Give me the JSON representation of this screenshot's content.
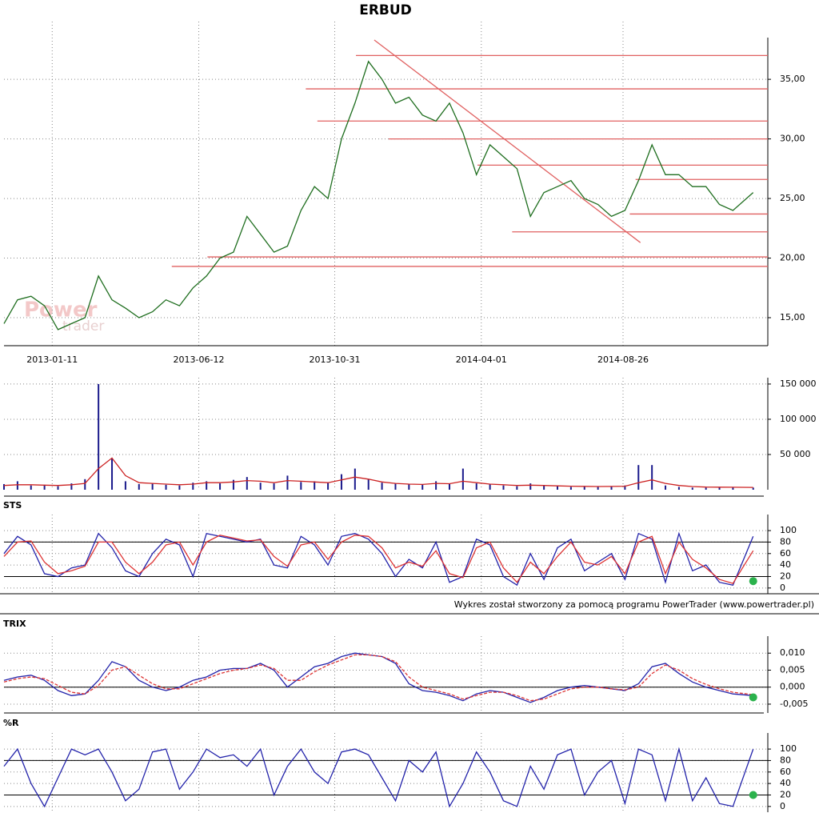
{
  "chart_data": [
    {
      "type": "line",
      "title": "ERBUD",
      "watermark": [
        "Power",
        "trader"
      ],
      "x": [
        "2012-11-22",
        "2012-12-06",
        "2012-12-20",
        "2013-01-03",
        "2013-01-17",
        "2013-01-31",
        "2013-02-14",
        "2013-02-28",
        "2013-03-14",
        "2013-03-28",
        "2013-04-11",
        "2013-04-25",
        "2013-05-09",
        "2013-05-23",
        "2013-06-06",
        "2013-06-20",
        "2013-07-04",
        "2013-07-18",
        "2013-08-01",
        "2013-08-15",
        "2013-08-29",
        "2013-09-12",
        "2013-09-26",
        "2013-10-10",
        "2013-10-24",
        "2013-11-07",
        "2013-11-21",
        "2013-12-05",
        "2013-12-19",
        "2014-01-02",
        "2014-01-16",
        "2014-01-30",
        "2014-02-13",
        "2014-02-27",
        "2014-03-13",
        "2014-03-27",
        "2014-04-10",
        "2014-04-24",
        "2014-05-08",
        "2014-05-22",
        "2014-06-05",
        "2014-06-19",
        "2014-07-03",
        "2014-07-17",
        "2014-07-31",
        "2014-08-14",
        "2014-08-28",
        "2014-09-11",
        "2014-09-25",
        "2014-10-09",
        "2014-10-23",
        "2014-11-06",
        "2014-11-20",
        "2014-12-04",
        "2014-12-18",
        "2015-01-08"
      ],
      "series": [
        {
          "color": "#1f6e1f",
          "values": [
            14.5,
            16.5,
            16.8,
            16.0,
            14.0,
            14.5,
            15.0,
            18.5,
            16.5,
            15.8,
            15.0,
            15.5,
            16.5,
            16.0,
            17.5,
            18.5,
            20.0,
            20.5,
            23.5,
            22.0,
            20.5,
            21.0,
            24.0,
            26.0,
            25.0,
            30.0,
            33.0,
            36.5,
            35.0,
            33.0,
            33.5,
            32.0,
            31.5,
            33.0,
            30.5,
            27.0,
            29.5,
            28.5,
            27.5,
            23.5,
            25.5,
            26.0,
            26.5,
            25.0,
            24.5,
            23.5,
            24.0,
            26.5,
            29.5,
            27.0,
            27.0,
            26.0,
            26.0,
            24.5,
            24.0,
            25.5
          ]
        }
      ],
      "levels": [
        {
          "value": 37.0,
          "start": "2013-11-22"
        },
        {
          "value": 34.2,
          "start": "2013-10-01"
        },
        {
          "value": 31.5,
          "start": "2013-10-13"
        },
        {
          "value": 30.0,
          "start": "2013-12-26"
        },
        {
          "value": 27.8,
          "start": "2014-03-28"
        },
        {
          "value": 26.6,
          "start": "2014-09-08"
        },
        {
          "value": 23.7,
          "start": "2014-09-02"
        },
        {
          "value": 22.2,
          "start": "2014-05-03"
        },
        {
          "value": 20.1,
          "start": "2013-06-21"
        },
        {
          "value": 19.3,
          "start": "2013-05-15"
        }
      ],
      "level_color": "#e06060",
      "trendline": {
        "x": [
          "2013-12-11",
          "2014-09-13"
        ],
        "y": [
          38.3,
          21.3
        ]
      },
      "xlim": [
        "2012-11-22",
        "2015-01-19"
      ],
      "xticks": [
        "2013-01-11",
        "2013-06-12",
        "2013-10-31",
        "2014-04-01",
        "2014-08-26"
      ],
      "ylim": [
        12.65,
        38.5
      ],
      "yticks": [
        {
          "value": 15,
          "label": "15,00"
        },
        {
          "value": 20,
          "label": "20,00"
        },
        {
          "value": 25,
          "label": "25,00"
        },
        {
          "value": 30,
          "label": "30,00"
        },
        {
          "value": 35,
          "label": "35,00"
        }
      ],
      "grid": true
    },
    {
      "type": "bar",
      "color": "#1a1a8c",
      "x": [
        "2012-11-22",
        "2012-12-06",
        "2012-12-20",
        "2013-01-03",
        "2013-01-17",
        "2013-01-31",
        "2013-02-14",
        "2013-02-28",
        "2013-03-14",
        "2013-03-28",
        "2013-04-11",
        "2013-04-25",
        "2013-05-09",
        "2013-05-23",
        "2013-06-06",
        "2013-06-20",
        "2013-07-04",
        "2013-07-18",
        "2013-08-01",
        "2013-08-15",
        "2013-08-29",
        "2013-09-12",
        "2013-09-26",
        "2013-10-10",
        "2013-10-24",
        "2013-11-07",
        "2013-11-21",
        "2013-12-05",
        "2013-12-19",
        "2014-01-02",
        "2014-01-16",
        "2014-01-30",
        "2014-02-13",
        "2014-02-27",
        "2014-03-13",
        "2014-03-27",
        "2014-04-10",
        "2014-04-24",
        "2014-05-08",
        "2014-05-22",
        "2014-06-05",
        "2014-06-19",
        "2014-07-03",
        "2014-07-17",
        "2014-07-31",
        "2014-08-14",
        "2014-08-28",
        "2014-09-11",
        "2014-09-25",
        "2014-10-09",
        "2014-10-23",
        "2014-11-06",
        "2014-11-20",
        "2014-12-04",
        "2014-12-18",
        "2015-01-08"
      ],
      "values": [
        8000,
        12000,
        6000,
        7000,
        5000,
        9000,
        15000,
        150000,
        45000,
        12000,
        8000,
        9000,
        7000,
        6000,
        10000,
        12000,
        9000,
        14000,
        18000,
        10000,
        9000,
        20000,
        11000,
        12000,
        10000,
        22000,
        30000,
        15000,
        10000,
        9000,
        8000,
        7000,
        12000,
        9000,
        30000,
        9000,
        8000,
        6000,
        5000,
        9000,
        6000,
        5000,
        4000,
        5000,
        4000,
        5000,
        6000,
        35000,
        35000,
        6000,
        4000,
        3000,
        3000,
        4000,
        3000,
        3000
      ],
      "series": [
        {
          "color": "#cc2222",
          "values": [
            6000,
            7000,
            7000,
            6500,
            6000,
            7000,
            9000,
            30000,
            45000,
            20000,
            10000,
            9000,
            8000,
            7000,
            8000,
            10000,
            10000,
            11000,
            13000,
            12000,
            10000,
            13000,
            12000,
            11000,
            10000,
            14000,
            18000,
            15000,
            11000,
            9000,
            8000,
            7500,
            9000,
            8500,
            12000,
            10000,
            8000,
            7000,
            6000,
            6500,
            6000,
            5500,
            5000,
            4800,
            4500,
            4600,
            5000,
            10000,
            14000,
            9000,
            6000,
            4500,
            3800,
            3600,
            3500,
            3300
          ]
        }
      ],
      "ylim": [
        0,
        159000
      ],
      "yticks": [
        {
          "value": 50000,
          "label": "50 000"
        },
        {
          "value": 100000,
          "label": "100 000"
        },
        {
          "value": 150000,
          "label": "150 000"
        }
      ],
      "grid": true
    },
    {
      "type": "line",
      "title": "STS",
      "x": [
        "2012-11-22",
        "2012-12-06",
        "2012-12-20",
        "2013-01-03",
        "2013-01-17",
        "2013-01-31",
        "2013-02-14",
        "2013-02-28",
        "2013-03-14",
        "2013-03-28",
        "2013-04-11",
        "2013-04-25",
        "2013-05-09",
        "2013-05-23",
        "2013-06-06",
        "2013-06-20",
        "2013-07-04",
        "2013-07-18",
        "2013-08-01",
        "2013-08-15",
        "2013-08-29",
        "2013-09-12",
        "2013-09-26",
        "2013-10-10",
        "2013-10-24",
        "2013-11-07",
        "2013-11-21",
        "2013-12-05",
        "2013-12-19",
        "2014-01-02",
        "2014-01-16",
        "2014-01-30",
        "2014-02-13",
        "2014-02-27",
        "2014-03-13",
        "2014-03-27",
        "2014-04-10",
        "2014-04-24",
        "2014-05-08",
        "2014-05-22",
        "2014-06-05",
        "2014-06-19",
        "2014-07-03",
        "2014-07-17",
        "2014-07-31",
        "2014-08-14",
        "2014-08-28",
        "2014-09-11",
        "2014-09-25",
        "2014-10-09",
        "2014-10-23",
        "2014-11-06",
        "2014-11-20",
        "2014-12-04",
        "2014-12-18",
        "2015-01-08"
      ],
      "series": [
        {
          "color": "#2222aa",
          "values": [
            60,
            90,
            75,
            25,
            20,
            35,
            40,
            95,
            70,
            30,
            20,
            60,
            85,
            75,
            20,
            95,
            90,
            85,
            80,
            85,
            40,
            35,
            90,
            75,
            40,
            90,
            95,
            85,
            60,
            20,
            50,
            35,
            80,
            10,
            20,
            85,
            75,
            20,
            5,
            60,
            15,
            70,
            85,
            30,
            45,
            60,
            15,
            95,
            85,
            10,
            95,
            30,
            40,
            10,
            5,
            90
          ]
        },
        {
          "color": "#dd3333",
          "values": [
            55,
            80,
            82,
            45,
            25,
            30,
            38,
            80,
            80,
            45,
            25,
            45,
            75,
            80,
            40,
            80,
            92,
            87,
            82,
            84,
            55,
            38,
            75,
            80,
            50,
            80,
            92,
            90,
            70,
            35,
            45,
            38,
            65,
            25,
            18,
            70,
            80,
            35,
            10,
            45,
            25,
            55,
            80,
            45,
            40,
            55,
            25,
            80,
            90,
            25,
            80,
            50,
            35,
            15,
            8,
            65
          ]
        }
      ],
      "signal": {
        "x": "2015-01-08",
        "y": 12
      },
      "signal_color": "#2bb24c",
      "hlines": [
        20,
        80
      ],
      "ylim": [
        -10,
        128
      ],
      "yticks": [
        0,
        20,
        40,
        60,
        80,
        100
      ],
      "grid": true,
      "footer": "Wykres został stworzony za pomocą programu PowerTrader (www.powertrader.pl)"
    },
    {
      "type": "line",
      "title": "TRIX",
      "x": [
        "2012-11-22",
        "2012-12-06",
        "2012-12-20",
        "2013-01-03",
        "2013-01-17",
        "2013-01-31",
        "2013-02-14",
        "2013-02-28",
        "2013-03-14",
        "2013-03-28",
        "2013-04-11",
        "2013-04-25",
        "2013-05-09",
        "2013-05-23",
        "2013-06-06",
        "2013-06-20",
        "2013-07-04",
        "2013-07-18",
        "2013-08-01",
        "2013-08-15",
        "2013-08-29",
        "2013-09-12",
        "2013-09-26",
        "2013-10-10",
        "2013-10-24",
        "2013-11-07",
        "2013-11-21",
        "2013-12-05",
        "2013-12-19",
        "2014-01-02",
        "2014-01-16",
        "2014-01-30",
        "2014-02-13",
        "2014-02-27",
        "2014-03-13",
        "2014-03-27",
        "2014-04-10",
        "2014-04-24",
        "2014-05-08",
        "2014-05-22",
        "2014-06-05",
        "2014-06-19",
        "2014-07-03",
        "2014-07-17",
        "2014-07-31",
        "2014-08-14",
        "2014-08-28",
        "2014-09-11",
        "2014-09-25",
        "2014-10-09",
        "2014-10-23",
        "2014-11-06",
        "2014-11-20",
        "2014-12-04",
        "2014-12-18",
        "2015-01-08"
      ],
      "series": [
        {
          "color": "#2222aa",
          "values": [
            0.002,
            0.003,
            0.0035,
            0.002,
            -0.001,
            -0.0025,
            -0.002,
            0.002,
            0.0075,
            0.006,
            0.002,
            0.0,
            -0.001,
            0.0,
            0.002,
            0.003,
            0.005,
            0.0055,
            0.0055,
            0.007,
            0.005,
            0.0,
            0.003,
            0.006,
            0.007,
            0.009,
            0.01,
            0.0095,
            0.009,
            0.007,
            0.001,
            -0.001,
            -0.0015,
            -0.0025,
            -0.004,
            -0.002,
            -0.001,
            -0.0015,
            -0.003,
            -0.0045,
            -0.003,
            -0.001,
            0.0,
            0.0005,
            0.0,
            -0.0005,
            -0.001,
            0.001,
            0.006,
            0.007,
            0.004,
            0.0015,
            0.0,
            -0.001,
            -0.002,
            -0.0025
          ]
        },
        {
          "color": "#dd3333",
          "dashed": true,
          "values": [
            0.0015,
            0.0025,
            0.003,
            0.0025,
            0.0005,
            -0.0015,
            -0.002,
            0.0005,
            0.005,
            0.006,
            0.0035,
            0.001,
            -0.0005,
            -0.0005,
            0.001,
            0.0025,
            0.004,
            0.005,
            0.0055,
            0.0065,
            0.0055,
            0.002,
            0.002,
            0.0045,
            0.0065,
            0.008,
            0.0095,
            0.0095,
            0.009,
            0.0075,
            0.003,
            0.0,
            -0.001,
            -0.002,
            -0.0035,
            -0.0025,
            -0.0015,
            -0.0015,
            -0.0025,
            -0.004,
            -0.0035,
            -0.002,
            -0.0005,
            0.0,
            0.0,
            -0.0005,
            -0.0008,
            0.0,
            0.004,
            0.0065,
            0.005,
            0.0025,
            0.0008,
            -0.0005,
            -0.0015,
            -0.0022
          ]
        }
      ],
      "signal": {
        "x": "2015-01-08",
        "y": -0.003
      },
      "signal_color": "#2bb24c",
      "hlines": [
        0
      ],
      "ylim": [
        -0.0076,
        0.015
      ],
      "yticks": [
        {
          "value": -0.005,
          "label": "-0,005"
        },
        {
          "value": 0,
          "label": "0,000"
        },
        {
          "value": 0.005,
          "label": "0,005"
        },
        {
          "value": 0.01,
          "label": "0,010"
        }
      ],
      "grid": true
    },
    {
      "type": "line",
      "title": "%R",
      "x": [
        "2012-11-22",
        "2012-12-06",
        "2012-12-20",
        "2013-01-03",
        "2013-01-17",
        "2013-01-31",
        "2013-02-14",
        "2013-02-28",
        "2013-03-14",
        "2013-03-28",
        "2013-04-11",
        "2013-04-25",
        "2013-05-09",
        "2013-05-23",
        "2013-06-06",
        "2013-06-20",
        "2013-07-04",
        "2013-07-18",
        "2013-08-01",
        "2013-08-15",
        "2013-08-29",
        "2013-09-12",
        "2013-09-26",
        "2013-10-10",
        "2013-10-24",
        "2013-11-07",
        "2013-11-21",
        "2013-12-05",
        "2013-12-19",
        "2014-01-02",
        "2014-01-16",
        "2014-01-30",
        "2014-02-13",
        "2014-02-27",
        "2014-03-13",
        "2014-03-27",
        "2014-04-10",
        "2014-04-24",
        "2014-05-08",
        "2014-05-22",
        "2014-06-05",
        "2014-06-19",
        "2014-07-03",
        "2014-07-17",
        "2014-07-31",
        "2014-08-14",
        "2014-08-28",
        "2014-09-11",
        "2014-09-25",
        "2014-10-09",
        "2014-10-23",
        "2014-11-06",
        "2014-11-20",
        "2014-12-04",
        "2014-12-18",
        "2015-01-08"
      ],
      "series": [
        {
          "color": "#2222aa",
          "values": [
            70,
            100,
            40,
            0,
            50,
            100,
            90,
            100,
            60,
            10,
            30,
            95,
            100,
            30,
            60,
            100,
            85,
            90,
            70,
            100,
            20,
            70,
            100,
            60,
            40,
            95,
            100,
            90,
            50,
            10,
            80,
            60,
            95,
            0,
            40,
            95,
            60,
            10,
            0,
            70,
            30,
            90,
            100,
            20,
            60,
            80,
            5,
            100,
            90,
            10,
            100,
            10,
            50,
            5,
            0,
            100
          ]
        }
      ],
      "signal": {
        "x": "2015-01-08",
        "y": 20
      },
      "signal_color": "#2bb24c",
      "hlines": [
        20,
        80
      ],
      "ylim": [
        -10,
        128
      ],
      "yticks": [
        0,
        20,
        40,
        60,
        80,
        100
      ],
      "grid": true
    }
  ]
}
